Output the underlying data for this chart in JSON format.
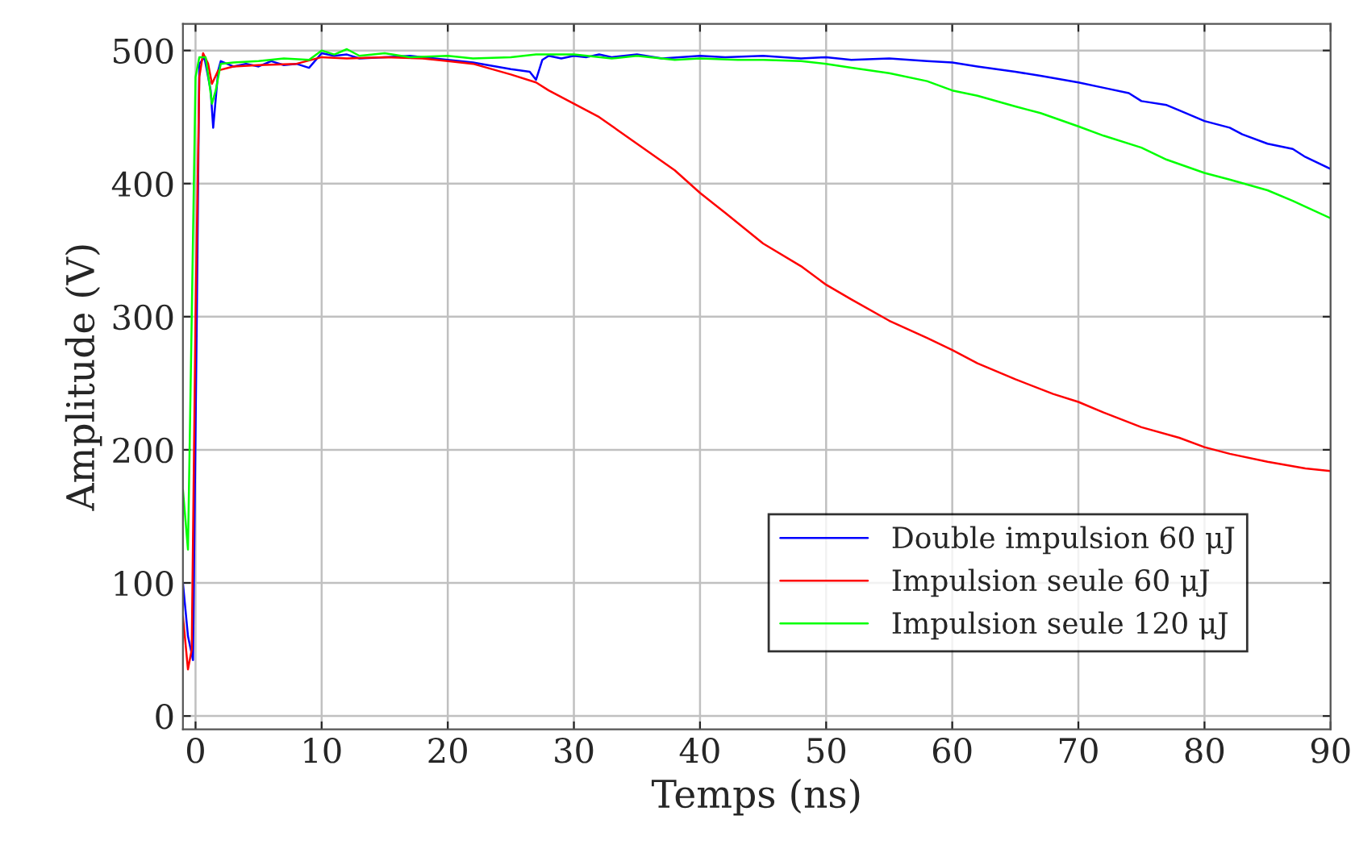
{
  "chart_data": {
    "type": "line",
    "xlabel": "Temps (ns)",
    "ylabel": "Amplitude (V)",
    "xlim": [
      -1,
      90
    ],
    "ylim": [
      -10,
      520
    ],
    "xticks": [
      0,
      10,
      20,
      30,
      40,
      50,
      60,
      70,
      80,
      90
    ],
    "yticks": [
      0,
      100,
      200,
      300,
      400,
      500
    ],
    "grid": true,
    "legend": "bottom right",
    "line_style": "solid",
    "marker": "none",
    "series": [
      {
        "name": "Double impulsion 60 μJ",
        "color": "#0000ff",
        "x": [
          -1,
          -0.6,
          -0.2,
          0.1,
          0.3,
          0.7,
          1.2,
          1.4,
          1.8,
          2,
          3,
          4,
          5,
          6,
          7,
          8,
          9,
          10,
          11,
          12,
          13,
          15,
          17,
          20,
          22,
          25,
          26.5,
          27,
          27.5,
          28,
          29,
          30,
          31,
          32,
          33,
          35,
          37,
          40,
          42,
          45,
          48,
          50,
          52,
          55,
          58,
          60,
          62,
          65,
          67,
          70,
          72,
          74,
          75,
          77,
          78,
          80,
          82,
          83,
          85,
          87,
          88,
          90
        ],
        "values": [
          100,
          60,
          42,
          300,
          490,
          495,
          470,
          442,
          485,
          492,
          488,
          490,
          488,
          492,
          489,
          490,
          487,
          498,
          496,
          497,
          494,
          495,
          496,
          493,
          491,
          486,
          484,
          478,
          493,
          496,
          494,
          496,
          495,
          497,
          495,
          497,
          494,
          496,
          495,
          496,
          494,
          495,
          493,
          494,
          492,
          491,
          488,
          484,
          481,
          476,
          472,
          468,
          462,
          459,
          455,
          447,
          442,
          437,
          430,
          426,
          420,
          411
        ]
      },
      {
        "name": "Impulsion seule 60 μJ",
        "color": "#ff0000",
        "x": [
          -1,
          -0.6,
          -0.3,
          0,
          0.3,
          0.6,
          1.0,
          1.3,
          1.8,
          3,
          5,
          8,
          10,
          12,
          15,
          18,
          20,
          22,
          25,
          27,
          28,
          30,
          32,
          35,
          38,
          40,
          42,
          45,
          48,
          50,
          52,
          55,
          58,
          60,
          62,
          65,
          68,
          70,
          72,
          75,
          78,
          80,
          82,
          85,
          88,
          90
        ],
        "values": [
          75,
          35,
          50,
          300,
          480,
          498,
          490,
          475,
          485,
          488,
          489,
          490,
          495,
          494,
          495,
          494,
          492,
          490,
          482,
          476,
          470,
          460,
          450,
          430,
          410,
          393,
          378,
          355,
          338,
          324,
          313,
          297,
          284,
          275,
          265,
          253,
          242,
          236,
          228,
          217,
          209,
          202,
          197,
          191,
          186,
          184
        ]
      },
      {
        "name": "Impulsion seule 120 μJ",
        "color": "#00ff00",
        "x": [
          -1,
          -0.6,
          -0.3,
          0,
          0.3,
          0.8,
          1.1,
          1.3,
          1.6,
          2,
          3,
          5,
          7,
          9,
          10,
          11,
          12,
          13,
          15,
          17,
          20,
          22,
          25,
          27,
          30,
          33,
          35,
          38,
          40,
          43,
          45,
          48,
          50,
          52,
          55,
          58,
          60,
          62,
          65,
          67,
          70,
          72,
          75,
          77,
          80,
          82,
          85,
          87,
          90
        ],
        "values": [
          170,
          125,
          300,
          480,
          495,
          495,
          475,
          460,
          470,
          490,
          491,
          492,
          494,
          493,
          500,
          497,
          501,
          496,
          498,
          495,
          496,
          494,
          495,
          497,
          497,
          494,
          496,
          493,
          494,
          493,
          493,
          492,
          490,
          487,
          483,
          477,
          470,
          466,
          458,
          453,
          443,
          436,
          427,
          418,
          408,
          403,
          395,
          387,
          374
        ]
      }
    ]
  }
}
